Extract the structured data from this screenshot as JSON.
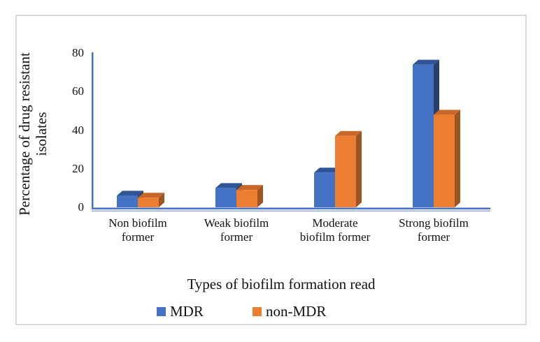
{
  "figure": {
    "background_color": "#ffffff",
    "border_color": "#d9d9d9"
  },
  "chart_data": {
    "type": "bar",
    "variant": "3d-clustered",
    "title": "",
    "xlabel": "Types of biofilm formation read",
    "ylabel": "Percentage of drug resistant isolates",
    "categories": [
      "Non biofilm former",
      "Weak biofilm former",
      "Moderate biofilm former",
      "Strong biofilm former"
    ],
    "series": [
      {
        "name": "MDR",
        "values": [
          6,
          10,
          18,
          74
        ],
        "color": "#4472C4",
        "color_top": "#2F5597",
        "color_side": "#24406B"
      },
      {
        "name": "non-MDR",
        "values": [
          5,
          9,
          37,
          48
        ],
        "color": "#ED7D31",
        "color_top": "#C96728",
        "color_side": "#9E5322"
      }
    ],
    "ylim": [
      0,
      80
    ],
    "yticks": [
      0,
      20,
      40,
      60,
      80
    ],
    "grid": false,
    "legend_position": "bottom",
    "axis_color": "#4472C4",
    "axis_floor_color": "#8FAADC"
  }
}
